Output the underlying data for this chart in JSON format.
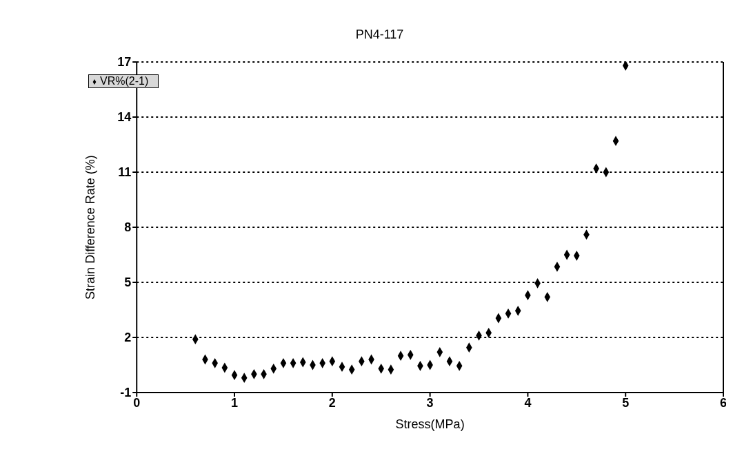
{
  "chart_data": {
    "type": "scatter",
    "title": "PN4-117",
    "xlabel": "Stress(MPa)",
    "ylabel": "Strain Difference Rate (%)",
    "x": [
      0.6,
      0.7,
      0.8,
      0.9,
      1.0,
      1.1,
      1.2,
      1.3,
      1.4,
      1.5,
      1.6,
      1.7,
      1.8,
      1.9,
      2.0,
      2.1,
      2.2,
      2.3,
      2.4,
      2.5,
      2.6,
      2.7,
      2.8,
      2.9,
      3.0,
      3.1,
      3.2,
      3.3,
      3.4,
      3.5,
      3.6,
      3.7,
      3.8,
      3.9,
      4.0,
      4.1,
      4.2,
      4.3,
      4.4,
      4.5,
      4.6,
      4.7,
      4.8,
      4.9,
      5.0
    ],
    "series": [
      {
        "name": "VR%(2-1)",
        "color": "#000000",
        "values": [
          1.9,
          0.8,
          0.6,
          0.35,
          -0.05,
          -0.2,
          0.0,
          0.0,
          0.3,
          0.6,
          0.6,
          0.65,
          0.5,
          0.6,
          0.7,
          0.4,
          0.25,
          0.7,
          0.8,
          0.3,
          0.25,
          1.0,
          1.05,
          0.45,
          0.5,
          1.2,
          0.7,
          0.45,
          1.45,
          2.1,
          2.25,
          3.05,
          3.3,
          3.45,
          4.3,
          4.95,
          4.2,
          5.85,
          6.5,
          6.45,
          7.6,
          11.2,
          11.0,
          12.7,
          16.8
        ]
      }
    ],
    "xlim": [
      0,
      6
    ],
    "xticks": [
      0,
      1,
      2,
      3,
      4,
      5,
      6
    ],
    "ylim": [
      -1,
      17
    ],
    "yticks": [
      -1,
      2,
      5,
      8,
      11,
      14,
      17
    ],
    "grid": "y",
    "legend": "top left",
    "marker": "diamond"
  }
}
